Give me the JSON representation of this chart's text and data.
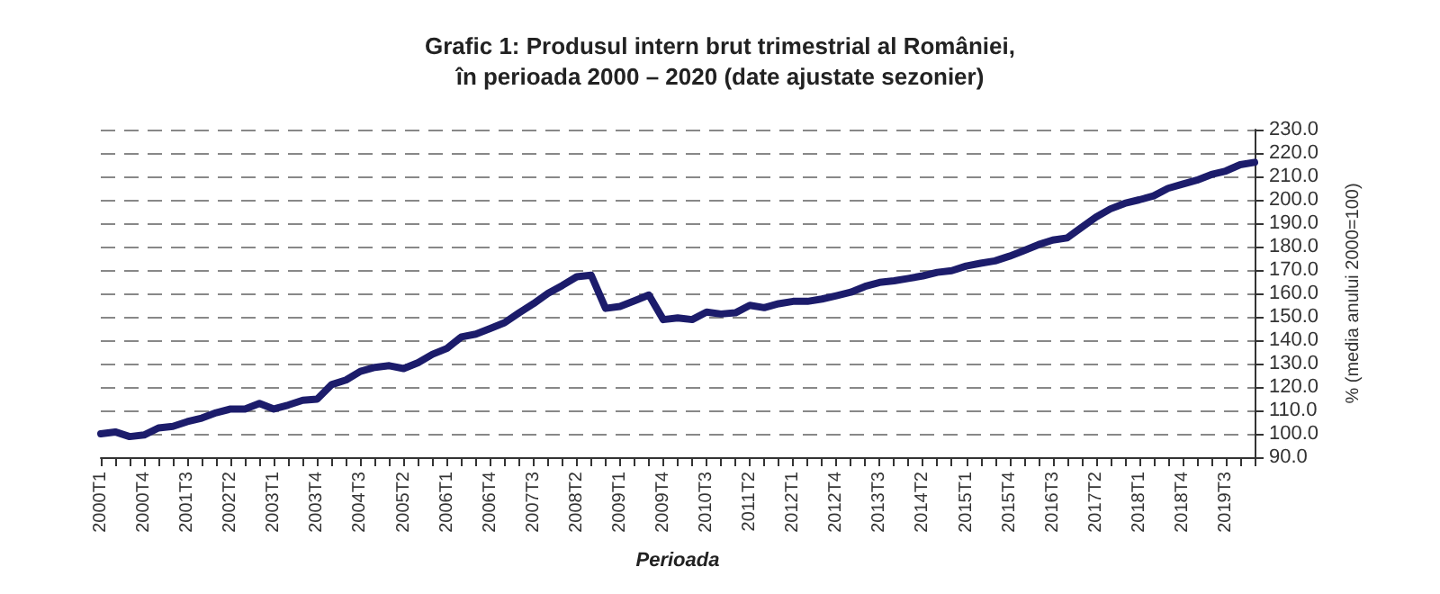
{
  "chart_data": {
    "type": "line",
    "title": "Grafic 1: Produsul intern brut trimestrial al României,\nîn perioada 2000 – 2020 (date ajustate sezonier)",
    "xlabel": "Perioada",
    "ylabel": "% (media anului 2000=100)",
    "categories": [
      "2000T1",
      null,
      null,
      "2000T4",
      null,
      null,
      "2001T3",
      null,
      null,
      "2002T2",
      null,
      null,
      "2003T1",
      null,
      null,
      "2003T4",
      null,
      null,
      "2004T3",
      null,
      null,
      "2005T2",
      null,
      null,
      "2006T1",
      null,
      null,
      "2006T4",
      null,
      null,
      "2007T3",
      null,
      null,
      "2008T2",
      null,
      null,
      "2009T1",
      null,
      null,
      "2009T4",
      null,
      null,
      "2010T3",
      null,
      null,
      "2011T2",
      null,
      null,
      "2012T1",
      null,
      null,
      "2012T4",
      null,
      null,
      "2013T3",
      null,
      null,
      "2014T2",
      null,
      null,
      "2015T1",
      null,
      null,
      "2015T4",
      null,
      null,
      "2016T3",
      null,
      null,
      "2017T2",
      null,
      null,
      "2018T1",
      null,
      null,
      "2018T4",
      null,
      null,
      "2019T3",
      null,
      null
    ],
    "series": [
      {
        "color": "#1c1c6b",
        "values": [
          100.0,
          100.8,
          98.8,
          99.5,
          102.5,
          103.2,
          105.2,
          106.7,
          109.0,
          110.6,
          110.6,
          113.0,
          110.6,
          112.3,
          114.3,
          114.8,
          121.0,
          123.0,
          126.7,
          128.4,
          129.1,
          127.9,
          130.4,
          134.0,
          136.5,
          141.4,
          142.6,
          145.0,
          147.5,
          151.7,
          155.6,
          160.0,
          163.4,
          167.1,
          167.8,
          153.6,
          154.4,
          156.8,
          159.3,
          148.8,
          149.5,
          148.8,
          152.0,
          151.2,
          151.7,
          154.9,
          153.9,
          155.6,
          156.6,
          156.6,
          157.6,
          159.0,
          160.5,
          163.0,
          164.7,
          165.4,
          166.4,
          167.5,
          169.0,
          169.7,
          171.7,
          172.9,
          173.9,
          175.9,
          178.3,
          180.8,
          182.8,
          183.7,
          188.2,
          192.6,
          196.1,
          198.5,
          200.0,
          201.7,
          204.9,
          206.7,
          208.4,
          210.8,
          212.3,
          215.0,
          216.0
        ]
      }
    ],
    "ylim": [
      90,
      230
    ],
    "yticks": [
      {
        "value": 90,
        "label": "90.0"
      },
      {
        "value": 100,
        "label": "100.0"
      },
      {
        "value": 110,
        "label": "110.0"
      },
      {
        "value": 120,
        "label": "120.0"
      },
      {
        "value": 130,
        "label": "130.0"
      },
      {
        "value": 140,
        "label": "140.0"
      },
      {
        "value": 150,
        "label": "150.0"
      },
      {
        "value": 160,
        "label": "160.0"
      },
      {
        "value": 170,
        "label": "170.0"
      },
      {
        "value": 180,
        "label": "180.0"
      },
      {
        "value": 190,
        "label": "190.0"
      },
      {
        "value": 200,
        "label": "200.0"
      },
      {
        "value": 210,
        "label": "210.0"
      },
      {
        "value": 220,
        "label": "220.0"
      },
      {
        "value": 230,
        "label": "230.0"
      }
    ],
    "grid": "y",
    "marker": "none",
    "line_style": "solid"
  }
}
